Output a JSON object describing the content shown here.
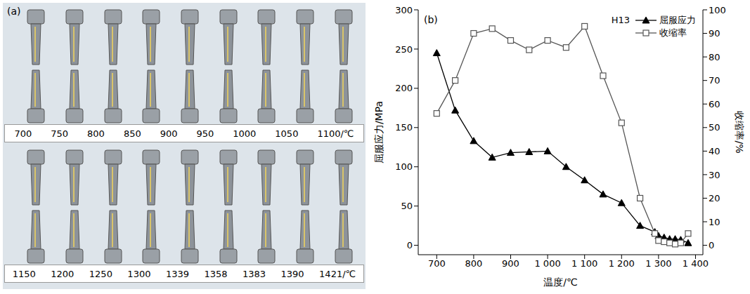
{
  "panel_a": {
    "label": "(a)",
    "rows": [
      [
        "700",
        "750",
        "800",
        "850",
        "900",
        "950",
        "1000",
        "1050",
        "1100/℃"
      ],
      [
        "1150",
        "1200",
        "1250",
        "1300",
        "1339",
        "1358",
        "1383",
        "1390",
        "1421/℃"
      ]
    ]
  },
  "chart_data": {
    "type": "line",
    "panel_label": "(b)",
    "annotation": "H13",
    "x_label": "温度/℃",
    "y_label": "屈服应力/MPa",
    "y2_label": "收缩率/%",
    "x": [
      700,
      750,
      800,
      850,
      900,
      950,
      1000,
      1050,
      1100,
      1150,
      1200,
      1250,
      1290,
      1300,
      1315,
      1330,
      1345,
      1360,
      1380
    ],
    "series": [
      {
        "name": "屈服应力",
        "color": "#000000",
        "marker": "triangle",
        "values": [
          245,
          172,
          133,
          112,
          118,
          119,
          120,
          100,
          83,
          65,
          54,
          25,
          17,
          12,
          10,
          8,
          8,
          7,
          3
        ]
      },
      {
        "name": "收缩率",
        "color": "#555555",
        "marker": "square",
        "axis": "y2",
        "values": [
          56,
          70,
          90,
          92,
          87,
          83,
          87,
          84,
          93,
          72,
          52,
          20,
          5,
          2,
          1.5,
          1,
          0.5,
          1,
          5
        ]
      }
    ],
    "xlim": [
      650,
      1420
    ],
    "xticks": [
      700,
      800,
      900,
      {
        "value": 1000,
        "label": "1 000"
      },
      {
        "value": 1100,
        "label": "1 100"
      },
      {
        "value": 1200,
        "label": "1 200"
      },
      {
        "value": 1300,
        "label": "1 300"
      },
      {
        "value": 1400,
        "label": "1 400"
      }
    ],
    "ylim": [
      -12,
      300
    ],
    "yticks": [
      0,
      50,
      100,
      150,
      200,
      250,
      300
    ],
    "y2lim": [
      -4,
      100
    ],
    "y2ticks": [
      0,
      10,
      20,
      30,
      40,
      50,
      60,
      70,
      80,
      90,
      100
    ],
    "grid": false,
    "legend": "top-right"
  }
}
